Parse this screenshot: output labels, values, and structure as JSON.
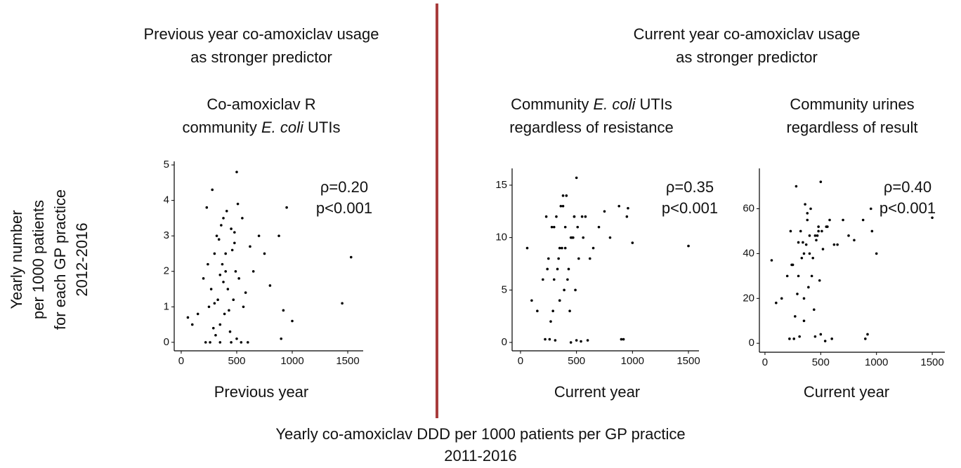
{
  "figure": {
    "left_heading": [
      "Previous year co-amoxiclav usage",
      "as stronger predictor"
    ],
    "right_heading": [
      "Current year co-amoxiclav usage",
      "as stronger predictor"
    ],
    "y_label": [
      "Yearly number",
      "per 1000 patients",
      "for each GP practice",
      "2012-2016"
    ],
    "x_label": [
      "Yearly co-amoxiclav DDD per 1000 patients per GP practice",
      "2011-2016"
    ],
    "divider_color": "#a83c3c"
  },
  "chart_data": [
    {
      "type": "scatter",
      "color": "#000000",
      "title": [
        [
          {
            "text": "Co-amoxiclav R"
          }
        ],
        [
          {
            "text": "community "
          },
          {
            "text": "E. coli",
            "italic": true
          },
          {
            "text": " UTIs"
          }
        ]
      ],
      "annotations": [
        "ρ=0.20",
        "p<0.001"
      ],
      "x_label": "Previous year",
      "xlim": [
        -63,
        1639
      ],
      "ylim": [
        -0.24,
        5.1
      ],
      "xticks": [
        0,
        500,
        1000,
        1500
      ],
      "yticks": [
        0,
        1,
        2,
        3,
        4,
        5
      ],
      "x": [
        250,
        300,
        320,
        350,
        380,
        400,
        420,
        450,
        480,
        500,
        280,
        260,
        330,
        370,
        390,
        410,
        440,
        460,
        520,
        550,
        600,
        650,
        700,
        750,
        800,
        900,
        950,
        1000,
        1450,
        1530,
        200,
        150,
        100,
        60,
        230,
        270,
        310,
        340,
        360,
        430,
        470,
        490,
        510,
        540,
        580,
        620,
        240,
        290,
        350,
        400,
        220,
        300,
        380,
        450,
        500,
        560,
        880,
        920,
        350,
        480
      ],
      "values": [
        1.0,
        2.5,
        3.0,
        0.5,
        3.5,
        2.0,
        1.5,
        3.2,
        2.8,
        4.8,
        4.3,
        0.0,
        1.2,
        2.2,
        0.8,
        3.7,
        0.3,
        2.6,
        1.8,
        3.5,
        0.0,
        2.0,
        3.0,
        2.5,
        1.6,
        0.1,
        3.8,
        0.6,
        1.1,
        2.4,
        1.8,
        0.8,
        0.5,
        0.7,
        3.8,
        1.5,
        0.2,
        2.9,
        3.3,
        0.9,
        1.2,
        2.0,
        3.9,
        0.0,
        1.4,
        2.7,
        2.2,
        0.4,
        1.9,
        2.5,
        0.0,
        1.1,
        1.7,
        0.0,
        0.1,
        1.0,
        3.0,
        0.9,
        0.0,
        3.1
      ]
    },
    {
      "type": "scatter",
      "color": "#000000",
      "title": [
        [
          {
            "text": "Community "
          },
          {
            "text": "E. coli",
            "italic": true
          },
          {
            "text": " UTIs"
          }
        ],
        [
          {
            "text": "regardless of resistance"
          }
        ]
      ],
      "annotations": [
        "ρ=0.35",
        "p<0.001"
      ],
      "x_label": "Current year",
      "xlim": [
        -75,
        1594
      ],
      "ylim": [
        -0.8,
        16.6
      ],
      "xticks": [
        0,
        500,
        1000,
        1500
      ],
      "yticks": [
        0,
        5,
        10,
        15
      ],
      "x": [
        250,
        300,
        320,
        350,
        380,
        400,
        420,
        450,
        480,
        500,
        280,
        260,
        330,
        370,
        390,
        410,
        440,
        460,
        520,
        550,
        600,
        650,
        700,
        750,
        800,
        900,
        950,
        1000,
        1500,
        960,
        200,
        150,
        100,
        60,
        230,
        270,
        310,
        340,
        360,
        430,
        470,
        490,
        510,
        540,
        580,
        620,
        240,
        290,
        350,
        400,
        220,
        300,
        380,
        450,
        500,
        560,
        880,
        920,
        350,
        480
      ],
      "values": [
        8,
        11,
        12,
        4,
        13,
        9,
        6,
        10,
        12,
        15.7,
        11,
        0.3,
        7,
        9,
        5,
        14,
        3,
        10,
        8,
        12,
        0.2,
        9,
        11,
        12.5,
        10,
        0.3,
        12,
        9.5,
        9.2,
        12.8,
        6,
        3,
        4,
        9,
        12,
        2,
        0.2,
        8,
        13,
        7,
        10,
        5,
        11,
        0.1,
        12,
        8,
        7,
        3,
        9,
        11,
        0.3,
        6,
        14,
        0,
        0.2,
        10,
        13,
        0.3,
        4,
        12
      ]
    },
    {
      "type": "scatter",
      "color": "#000000",
      "title": [
        [
          {
            "text": "Community urines"
          }
        ],
        [
          {
            "text": "regardless of result"
          }
        ]
      ],
      "annotations": [
        "ρ=0.40",
        "p<0.001"
      ],
      "x_label": "Current year",
      "xlim": [
        -50,
        1613
      ],
      "ylim": [
        -4,
        78
      ],
      "xticks": [
        0,
        500,
        1000,
        1500
      ],
      "yticks": [
        0,
        20,
        40,
        60
      ],
      "x": [
        250,
        300,
        320,
        350,
        380,
        400,
        420,
        450,
        480,
        500,
        280,
        260,
        330,
        370,
        390,
        410,
        440,
        460,
        520,
        550,
        600,
        650,
        700,
        750,
        800,
        900,
        950,
        1000,
        1500,
        960,
        200,
        150,
        100,
        60,
        230,
        270,
        310,
        340,
        360,
        430,
        470,
        490,
        510,
        540,
        580,
        620,
        240,
        290,
        350,
        400,
        220,
        300,
        380,
        450,
        500,
        560,
        880,
        920,
        350,
        480
      ],
      "values": [
        35,
        45,
        50,
        20,
        55,
        40,
        30,
        48,
        52,
        72,
        70,
        2,
        38,
        44,
        25,
        60,
        15,
        46,
        42,
        52,
        2,
        44,
        55,
        48,
        46,
        2,
        60,
        40,
        56,
        50,
        30,
        20,
        18,
        37,
        50,
        12,
        3,
        45,
        62,
        38,
        48,
        28,
        50,
        1,
        55,
        44,
        35,
        22,
        40,
        48,
        2,
        30,
        58,
        3,
        4,
        52,
        55,
        4,
        10,
        50
      ]
    }
  ]
}
